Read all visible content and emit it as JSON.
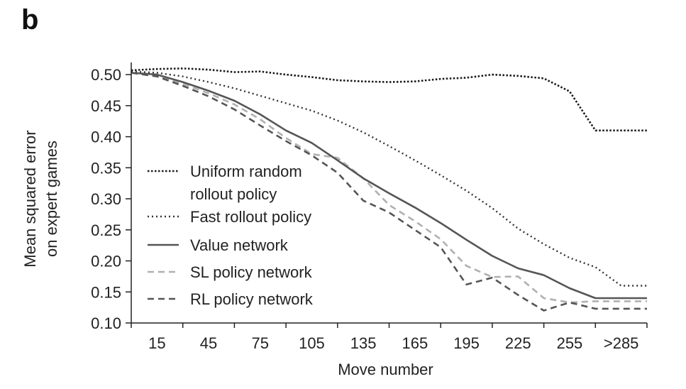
{
  "panel_label": "b",
  "chart_data": {
    "type": "line",
    "title": "",
    "xlabel": "Move number",
    "ylabel": [
      "Mean squared error",
      "on expert games"
    ],
    "x_tick_labels": [
      "15",
      "45",
      "75",
      "105",
      "135",
      "165",
      "195",
      "225",
      "255",
      ">285"
    ],
    "x_tick_positions": [
      15,
      45,
      75,
      105,
      135,
      165,
      195,
      225,
      255,
      285
    ],
    "xlim": [
      0,
      300
    ],
    "ylim": [
      0.1,
      0.515
    ],
    "y_ticks": [
      0.1,
      0.15,
      0.2,
      0.25,
      0.3,
      0.35,
      0.4,
      0.45,
      0.5
    ],
    "y_tick_labels": [
      "0.10",
      "0.15",
      "0.20",
      "0.25",
      "0.30",
      "0.35",
      "0.40",
      "0.45",
      "0.50"
    ],
    "x": [
      0,
      15,
      30,
      45,
      60,
      75,
      90,
      105,
      120,
      135,
      150,
      165,
      180,
      195,
      210,
      225,
      240,
      255,
      270,
      285,
      300
    ],
    "legend_position": "left-center",
    "series": [
      {
        "name": [
          "Uniform random",
          "rollout policy"
        ],
        "style": "dotted-dense",
        "color": "#1a1a1a",
        "values": [
          0.507,
          0.509,
          0.51,
          0.508,
          0.504,
          0.505,
          0.5,
          0.496,
          0.491,
          0.489,
          0.488,
          0.489,
          0.493,
          0.495,
          0.5,
          0.498,
          0.494,
          0.473,
          0.41,
          0.41,
          0.41
        ]
      },
      {
        "name": [
          "Fast rollout policy"
        ],
        "style": "dotted",
        "color": "#333333",
        "values": [
          0.505,
          0.503,
          0.497,
          0.488,
          0.478,
          0.466,
          0.454,
          0.442,
          0.426,
          0.407,
          0.385,
          0.362,
          0.338,
          0.313,
          0.285,
          0.252,
          0.227,
          0.205,
          0.19,
          0.16,
          0.16
        ]
      },
      {
        "name": [
          "Value network"
        ],
        "style": "solid",
        "color": "#555555",
        "values": [
          0.503,
          0.5,
          0.488,
          0.474,
          0.458,
          0.436,
          0.41,
          0.39,
          0.362,
          0.333,
          0.309,
          0.286,
          0.261,
          0.234,
          0.208,
          0.188,
          0.177,
          0.156,
          0.14,
          0.14,
          0.14
        ]
      },
      {
        "name": [
          "SL policy network"
        ],
        "style": "dashed",
        "color": "#b0b0b0",
        "values": [
          0.503,
          0.498,
          0.485,
          0.47,
          0.452,
          0.428,
          0.398,
          0.372,
          0.366,
          0.333,
          0.29,
          0.264,
          0.235,
          0.192,
          0.174,
          0.175,
          0.14,
          0.133,
          0.135,
          0.135,
          0.135
        ]
      },
      {
        "name": [
          "RL policy network"
        ],
        "style": "dashed",
        "color": "#555555",
        "values": [
          0.503,
          0.497,
          0.482,
          0.465,
          0.444,
          0.418,
          0.393,
          0.37,
          0.342,
          0.297,
          0.278,
          0.25,
          0.222,
          0.162,
          0.173,
          0.145,
          0.12,
          0.133,
          0.123,
          0.123,
          0.123
        ]
      }
    ]
  }
}
